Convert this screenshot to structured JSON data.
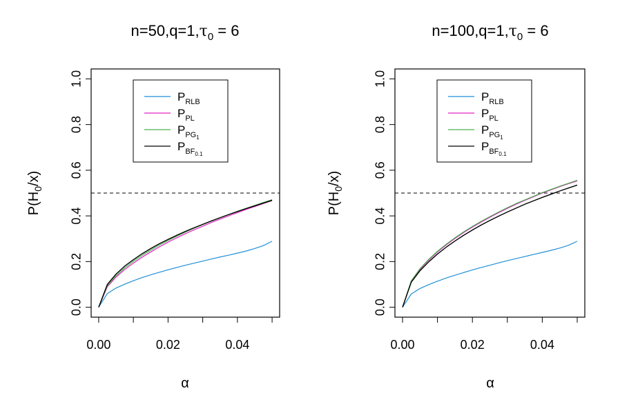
{
  "chart_data": [
    {
      "type": "line",
      "title": "n=50,q=1,τ0 = 6",
      "title_parts": {
        "prefix": "n=50,q=1,",
        "tau": "τ",
        "tau_sub": "0",
        "suffix": " = 6"
      },
      "xlabel": "α",
      "ylabel": "P(H0/x)",
      "ylabel_parts": {
        "p": "P(H",
        "sub": "0",
        "rest": "/x)"
      },
      "xlim": [
        0,
        0.05
      ],
      "ylim": [
        0,
        1
      ],
      "xticks": [
        0.0,
        0.01,
        0.02,
        0.03,
        0.04,
        0.05
      ],
      "xtick_labels": [
        "0.00",
        "",
        "0.02",
        "",
        "0.04",
        ""
      ],
      "yticks": [
        0.0,
        0.2,
        0.4,
        0.6,
        0.8,
        1.0
      ],
      "ytick_labels": [
        "0.0",
        "0.2",
        "0.4",
        "0.6",
        "0.8",
        "1.0"
      ],
      "reference_line": {
        "y": 0.5,
        "style": "dashed"
      },
      "x": [
        0.0,
        0.0025,
        0.005,
        0.0075,
        0.01,
        0.0125,
        0.015,
        0.0175,
        0.02,
        0.0225,
        0.025,
        0.0275,
        0.03,
        0.0325,
        0.035,
        0.0375,
        0.04,
        0.0425,
        0.045,
        0.0475,
        0.05
      ],
      "series": [
        {
          "name": "P_RLB",
          "color": "#1f8fd6",
          "values": [
            0.0,
            0.06,
            0.084,
            0.101,
            0.116,
            0.13,
            0.142,
            0.153,
            0.164,
            0.174,
            0.184,
            0.193,
            0.202,
            0.211,
            0.22,
            0.228,
            0.237,
            0.246,
            0.257,
            0.27,
            0.289
          ]
        },
        {
          "name": "P_PL",
          "color": "#e020c0",
          "values": [
            0.0,
            0.09,
            0.132,
            0.165,
            0.193,
            0.219,
            0.242,
            0.264,
            0.285,
            0.304,
            0.322,
            0.339,
            0.355,
            0.371,
            0.386,
            0.4,
            0.414,
            0.428,
            0.441,
            0.454,
            0.467
          ]
        },
        {
          "name": "P_PG1",
          "color": "#4caf50",
          "values": [
            0.0,
            0.094,
            0.138,
            0.172,
            0.201,
            0.227,
            0.25,
            0.272,
            0.292,
            0.311,
            0.329,
            0.346,
            0.362,
            0.377,
            0.392,
            0.406,
            0.42,
            0.433,
            0.446,
            0.459,
            0.471
          ]
        },
        {
          "name": "P_BF0.1",
          "color": "#000000",
          "values": [
            0.0,
            0.1,
            0.145,
            0.18,
            0.208,
            0.234,
            0.257,
            0.278,
            0.297,
            0.315,
            0.332,
            0.348,
            0.363,
            0.378,
            0.392,
            0.406,
            0.419,
            0.432,
            0.444,
            0.456,
            0.468
          ]
        }
      ],
      "legend": {
        "placement": "top-center",
        "entries": [
          {
            "base": "P",
            "sub": "RLB",
            "subsub": "",
            "color": "#1f8fd6"
          },
          {
            "base": "P",
            "sub": "PL",
            "subsub": "",
            "color": "#e020c0"
          },
          {
            "base": "P",
            "sub": "PG",
            "subsub": "1",
            "color": "#4caf50"
          },
          {
            "base": "P",
            "sub": "BF",
            "subsub": "0.1",
            "color": "#000000"
          }
        ]
      }
    },
    {
      "type": "line",
      "title": "n=100,q=1,τ0 = 6",
      "title_parts": {
        "prefix": "n=100,q=1,",
        "tau": "τ",
        "tau_sub": "0",
        "suffix": " = 6"
      },
      "xlabel": "α",
      "ylabel": "P(H0/x)",
      "ylabel_parts": {
        "p": "P(H",
        "sub": "0",
        "rest": "/x)"
      },
      "xlim": [
        0,
        0.05
      ],
      "ylim": [
        0,
        1
      ],
      "xticks": [
        0.0,
        0.01,
        0.02,
        0.03,
        0.04,
        0.05
      ],
      "xtick_labels": [
        "0.00",
        "",
        "0.02",
        "",
        "0.04",
        ""
      ],
      "yticks": [
        0.0,
        0.2,
        0.4,
        0.6,
        0.8,
        1.0
      ],
      "ytick_labels": [
        "0.0",
        "0.2",
        "0.4",
        "0.6",
        "0.8",
        "1.0"
      ],
      "reference_line": {
        "y": 0.5,
        "style": "dashed"
      },
      "x": [
        0.0,
        0.0025,
        0.005,
        0.0075,
        0.01,
        0.0125,
        0.015,
        0.0175,
        0.02,
        0.0225,
        0.025,
        0.0275,
        0.03,
        0.0325,
        0.035,
        0.0375,
        0.04,
        0.0425,
        0.045,
        0.0475,
        0.05
      ],
      "series": [
        {
          "name": "P_RLB",
          "color": "#1f8fd6",
          "values": [
            0.0,
            0.058,
            0.082,
            0.099,
            0.114,
            0.128,
            0.14,
            0.152,
            0.163,
            0.174,
            0.184,
            0.194,
            0.204,
            0.213,
            0.222,
            0.231,
            0.24,
            0.249,
            0.259,
            0.271,
            0.289
          ]
        },
        {
          "name": "P_PL",
          "color": "#e020c0",
          "values": [
            0.0,
            0.114,
            0.166,
            0.207,
            0.242,
            0.273,
            0.301,
            0.327,
            0.351,
            0.373,
            0.394,
            0.414,
            0.433,
            0.451,
            0.468,
            0.484,
            0.5,
            0.514,
            0.528,
            0.541,
            0.553
          ]
        },
        {
          "name": "P_PG1",
          "color": "#4caf50",
          "values": [
            0.0,
            0.116,
            0.169,
            0.21,
            0.245,
            0.276,
            0.304,
            0.33,
            0.354,
            0.376,
            0.397,
            0.417,
            0.436,
            0.454,
            0.47,
            0.486,
            0.502,
            0.516,
            0.53,
            0.543,
            0.556
          ]
        },
        {
          "name": "P_BF0.1",
          "color": "#000000",
          "values": [
            0.0,
            0.11,
            0.16,
            0.199,
            0.233,
            0.263,
            0.29,
            0.315,
            0.338,
            0.36,
            0.38,
            0.399,
            0.417,
            0.434,
            0.451,
            0.466,
            0.481,
            0.495,
            0.509,
            0.522,
            0.535
          ]
        }
      ],
      "legend": {
        "placement": "top-center",
        "entries": [
          {
            "base": "P",
            "sub": "RLB",
            "subsub": "",
            "color": "#1f8fd6"
          },
          {
            "base": "P",
            "sub": "PL",
            "subsub": "",
            "color": "#e020c0"
          },
          {
            "base": "P",
            "sub": "PG",
            "subsub": "1",
            "color": "#4caf50"
          },
          {
            "base": "P",
            "sub": "BF",
            "subsub": "0.1",
            "color": "#000000"
          }
        ]
      }
    }
  ]
}
